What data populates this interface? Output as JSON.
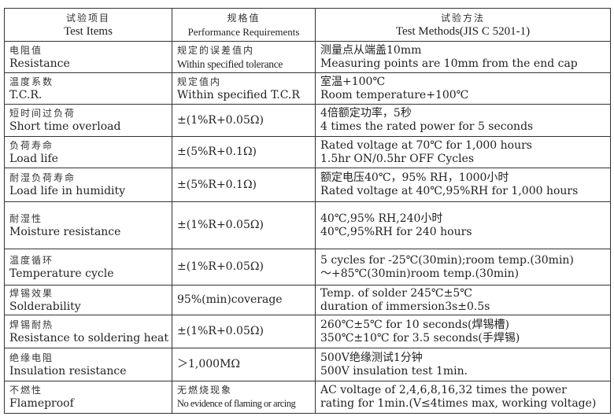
{
  "header": {
    "col1_zh": "试验项目",
    "col1_en": "Test Items",
    "col2_zh": "规格值",
    "col2_en": "Performance Requirements",
    "col3_zh": "试验方法",
    "col3_en": "Test Methods(JIS C 5201-1)"
  },
  "rows": [
    {
      "item_zh": "电阻值",
      "item_en": "Resistance",
      "req_zh": "规定的误差值内",
      "req_en": "Within specified tolerance",
      "method_1": "测量点从端盖10mm",
      "method_2": "Measuring points are 10mm from the end cap"
    },
    {
      "item_zh": "温度系数",
      "item_en": "T.C.R.",
      "req_zh": "规定值内",
      "req_en": "Within specified T.C.R",
      "method_1": "室温+100℃",
      "method_2": "Room temperature+100℃"
    },
    {
      "item_zh": "短时间过负荷",
      "item_en": "Short time overload",
      "req_en": "±(1%R+0.05Ω)",
      "method_1": "4倍额定功率，5秒",
      "method_2": "4 times the rated power for 5 seconds"
    },
    {
      "item_zh": "负荷寿命",
      "item_en": "Load life",
      "req_en": "±(5%R+0.1Ω)",
      "method_1": "Rated voltage at 70℃ for 1,000 hours",
      "method_2": "1.5hr ON/0.5hr OFF Cycles"
    },
    {
      "item_zh": "耐湿负荷寿命",
      "item_en": "Load life in humidity",
      "req_en": "±(5%R+0.1Ω)",
      "method_1": "额定电压40℃，95% RH，1000小时",
      "method_2": "Rated voltage at 40℃,95%RH for 1,000 hours"
    },
    {
      "item_zh": "耐湿性",
      "item_en": "Moisture resistance",
      "req_en": "±(1%R+0.05Ω)",
      "method_1": "40℃,95% RH,240小时",
      "method_2": "40℃,95%RH for 240 hours"
    },
    {
      "item_zh": "温度循环",
      "item_en": "Temperature cycle",
      "req_en": "±(1%R+0.05Ω)",
      "method_1": "5 cycles for -25℃(30min);room temp.(30min)",
      "method_2": "～+85℃(30min)room temp.(30min)"
    },
    {
      "item_zh": "焊锡效果",
      "item_en": "Solderability",
      "req_en": "95%(min)coverage",
      "method_1": "Temp. of solder 245℃±5℃",
      "method_2": "duration of immersion3s±0.5s"
    },
    {
      "item_zh": "焊锡耐热",
      "item_en": "Resistance to soldering heat",
      "req_en": "±(1%R+0.05Ω)",
      "method_1": "260℃±5℃ for 10 seconds(焊锡槽)",
      "method_2": "350℃±10℃ for 3.5 seconds(手焊锡)"
    },
    {
      "item_zh": "绝缘电阻",
      "item_en": "Insulation resistance",
      "req_en": "＞1,000MΩ",
      "method_1": "500V绝缘测试1分钟",
      "method_2": "500V insulation test 1min."
    },
    {
      "item_zh": "不燃性",
      "item_en": "Flameproof",
      "req_zh": "无燃烧现象",
      "req_en": "No evidence of flaming or arcing",
      "method_1": "AC voltage of 2,4,6,8,16,32 times the power",
      "method_2": "rating for 1min.(V≤4times max, working voltage)"
    }
  ]
}
